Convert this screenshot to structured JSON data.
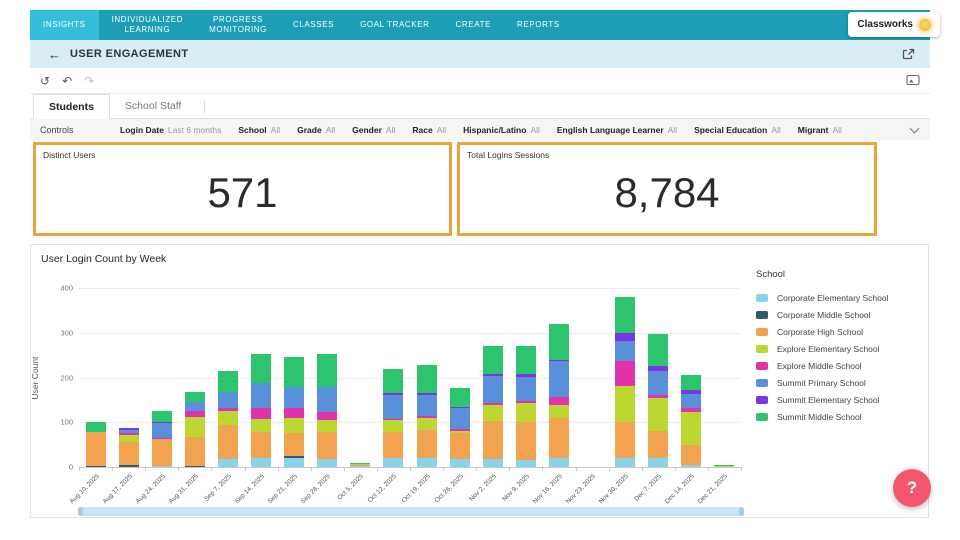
{
  "colors": {
    "teal": "#1C9EB6",
    "teal_active": "#35BEDC",
    "header_bg": "#D9EDF4",
    "kpi_border": "#E9A43C",
    "help_pink": "#F3566D",
    "scrollbar": "#C6E4F4"
  },
  "nav": {
    "brand": "Classworks",
    "items": [
      {
        "label": "INSIGHTS",
        "active": true
      },
      {
        "label": "INDIVIDUALIZED\nLEARNING",
        "active": false
      },
      {
        "label": "PROGRESS\nMONITORING",
        "active": false
      },
      {
        "label": "CLASSES",
        "active": false
      },
      {
        "label": "GOAL TRACKER",
        "active": false
      },
      {
        "label": "CREATE",
        "active": false
      },
      {
        "label": "REPORTS",
        "active": false
      }
    ]
  },
  "header": {
    "back_icon": "←",
    "title": "USER ENGAGEMENT"
  },
  "toolbar": {
    "reset_icon": "↺",
    "undo_icon": "↶",
    "redo_icon": "↷"
  },
  "tabs": [
    {
      "label": "Students",
      "active": true
    },
    {
      "label": "School Staff",
      "active": false
    }
  ],
  "controls": {
    "label": "Controls",
    "filters": [
      {
        "name": "Login Date",
        "value": "Last 6 months"
      },
      {
        "name": "School",
        "value": "All"
      },
      {
        "name": "Grade",
        "value": "All"
      },
      {
        "name": "Gender",
        "value": "All"
      },
      {
        "name": "Race",
        "value": "All"
      },
      {
        "name": "Hispanic/Latino",
        "value": "All"
      },
      {
        "name": "English Language Learner",
        "value": "All"
      },
      {
        "name": "Special Education",
        "value": "All"
      },
      {
        "name": "Migrant",
        "value": "All"
      }
    ]
  },
  "kpis": [
    {
      "label": "Distinct Users",
      "value": "571"
    },
    {
      "label": "Total Logins Sessions",
      "value": "8,784"
    }
  ],
  "chart_data": {
    "type": "bar",
    "stacked": true,
    "title": "User Login Count by Week",
    "xlabel": "",
    "ylabel": "User Count",
    "ylim": [
      0,
      400
    ],
    "yticks": [
      0,
      100,
      200,
      300,
      400
    ],
    "grid": true,
    "legend_title": "School",
    "legend_position": "right",
    "categories": [
      "Aug 10, 2025",
      "Aug 17, 2025",
      "Aug 24, 2025",
      "Aug 31, 2025",
      "Sep 7, 2025",
      "Sep 14, 2025",
      "Sep 21, 2025",
      "Sep 28, 2025",
      "Oct 5, 2025",
      "Oct 12, 2025",
      "Oct 19, 2025",
      "Oct 26, 2025",
      "Nov 2, 2025",
      "Nov 9, 2025",
      "Nov 16, 2025",
      "Nov 23, 2025",
      "Nov 30, 2025",
      "Dec 7, 2025",
      "Dec 14, 2025",
      "Dec 21, 2025"
    ],
    "series": [
      {
        "name": "Corporate Elementary School",
        "color": "#8AD4EB",
        "values": [
          0,
          0,
          3,
          0,
          19,
          20,
          20,
          19,
          2,
          20,
          20,
          18,
          18,
          15,
          20,
          0,
          20,
          20,
          5,
          0
        ]
      },
      {
        "name": "Corporate Middle School",
        "color": "#31596B",
        "values": [
          3,
          4,
          0,
          2,
          0,
          0,
          4,
          0,
          0,
          0,
          0,
          0,
          0,
          0,
          0,
          0,
          0,
          0,
          0,
          0
        ]
      },
      {
        "name": "Corporate High School",
        "color": "#F2A34F",
        "values": [
          75,
          51,
          60,
          64,
          76,
          58,
          53,
          60,
          2,
          58,
          62,
          57,
          85,
          85,
          90,
          0,
          81,
          61,
          45,
          0
        ]
      },
      {
        "name": "Explore Elementary School",
        "color": "#BCD632",
        "values": [
          0,
          17,
          0,
          46,
          30,
          30,
          33,
          25,
          3,
          26,
          28,
          6,
          36,
          42,
          28,
          0,
          81,
          73,
          73,
          3
        ]
      },
      {
        "name": "Explore Middle School",
        "color": "#E233AC",
        "values": [
          0,
          5,
          2,
          13,
          6,
          25,
          22,
          20,
          0,
          4,
          5,
          4,
          5,
          5,
          18,
          0,
          55,
          8,
          8,
          0
        ]
      },
      {
        "name": "Summit Primary School",
        "color": "#5A8FD9",
        "values": [
          0,
          6,
          33,
          20,
          37,
          55,
          48,
          55,
          0,
          52,
          45,
          47,
          60,
          55,
          80,
          0,
          44,
          52,
          32,
          0
        ]
      },
      {
        "name": "Summit Elementary School",
        "color": "#7937E3",
        "values": [
          0,
          5,
          2,
          0,
          0,
          0,
          0,
          0,
          0,
          5,
          5,
          2,
          4,
          5,
          4,
          0,
          18,
          11,
          10,
          0
        ]
      },
      {
        "name": "Summit Middle School",
        "color": "#2DC46E",
        "values": [
          22,
          0,
          25,
          23,
          47,
          65,
          66,
          74,
          3,
          55,
          63,
          42,
          62,
          63,
          80,
          0,
          81,
          72,
          33,
          2
        ]
      }
    ]
  },
  "help_button": {
    "label": "?"
  }
}
